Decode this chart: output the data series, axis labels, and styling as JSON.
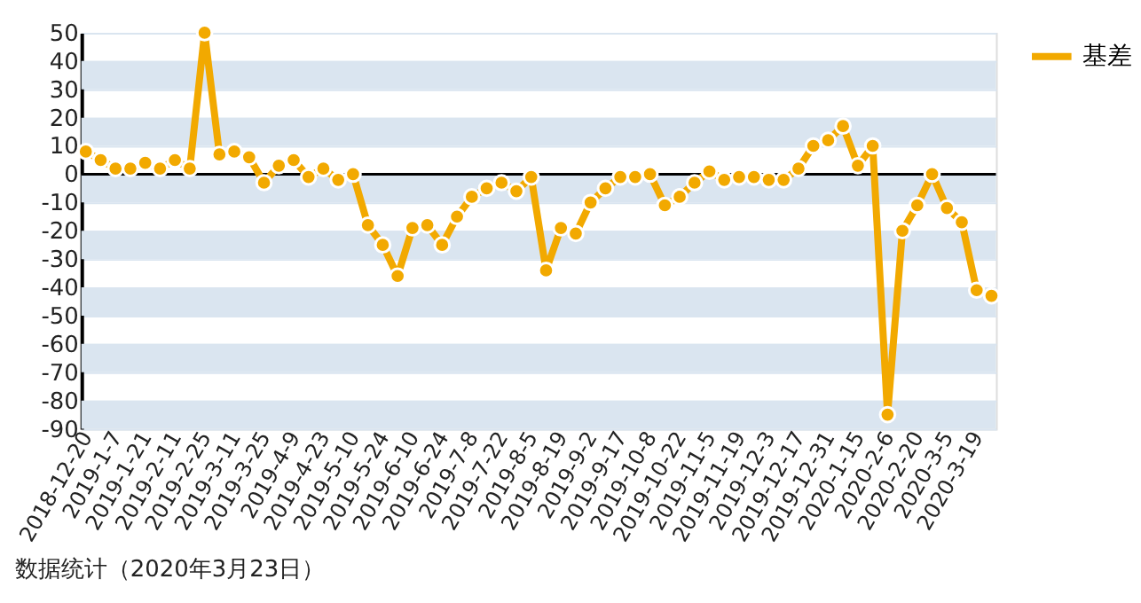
{
  "chart_data": {
    "type": "line",
    "categories": [
      "2018-12-20",
      null,
      "2019-1-7",
      null,
      "2019-1-21",
      null,
      "2019-2-11",
      null,
      "2019-2-25",
      null,
      "2019-3-11",
      null,
      "2019-3-25",
      null,
      "2019-4-9",
      null,
      "2019-4-23",
      null,
      "2019-5-10",
      null,
      "2019-5-24",
      null,
      "2019-6-10",
      null,
      "2019-6-24",
      null,
      "2019-7-8",
      null,
      "2019-7-22",
      null,
      "2019-8-5",
      null,
      "2019-8-19",
      null,
      "2019-9-2",
      null,
      "2019-9-17",
      null,
      "2019-10-8",
      null,
      "2019-10-22",
      null,
      "2019-11-5",
      null,
      "2019-11-19",
      null,
      "2019-12-3",
      null,
      "2019-12-17",
      null,
      "2019-12-31",
      null,
      "2020-1-15",
      null,
      "2020-2-6",
      null,
      "2020-2-20",
      null,
      "2020-3-5",
      null,
      "2020-3-19",
      null
    ],
    "series": [
      {
        "name": "基差",
        "color": "#f2a900",
        "values": [
          8,
          5,
          2,
          2,
          4,
          2,
          5,
          2,
          50,
          7,
          8,
          6,
          -3,
          3,
          5,
          -1,
          2,
          -2,
          0,
          -18,
          -25,
          -36,
          -19,
          -18,
          -25,
          -15,
          -8,
          -5,
          -3,
          -6,
          -1,
          -34,
          -19,
          -21,
          -10,
          -5,
          -1,
          -1,
          0,
          -11,
          -8,
          -3,
          1,
          -2,
          -1,
          -1,
          -2,
          -2,
          2,
          10,
          12,
          17,
          3,
          10,
          -85,
          -20,
          -11,
          0,
          -12,
          -17,
          -41,
          -43
        ]
      }
    ],
    "ylim": [
      -90,
      50
    ],
    "yticks": [
      -90,
      -80,
      -70,
      -60,
      -50,
      -40,
      -30,
      -20,
      -10,
      0,
      10,
      20,
      30,
      40,
      50
    ],
    "grid": "y",
    "legend": "right",
    "marker": "circle",
    "line_style": "solid",
    "ref_lines": [
      {
        "axis": "y",
        "value": 0,
        "color": "#000000"
      }
    ],
    "annotations": [
      "数据统计（2020年3月23日）"
    ]
  }
}
